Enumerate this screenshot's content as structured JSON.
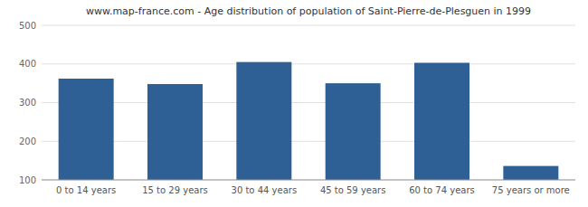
{
  "chart_data": {
    "type": "bar",
    "title": "www.map-france.com - Age distribution of population of Saint-Pierre-de-Plesguen in 1999",
    "categories": [
      "0 to 14 years",
      "15 to 29 years",
      "30 to 44 years",
      "45 to 59 years",
      "60 to 74 years",
      "75 years or more"
    ],
    "values": [
      362,
      348,
      405,
      350,
      403,
      136
    ],
    "color": "#2E6095",
    "ylim": [
      100,
      500
    ],
    "yticks": [
      100,
      200,
      300,
      400,
      500
    ],
    "grid": true
  }
}
